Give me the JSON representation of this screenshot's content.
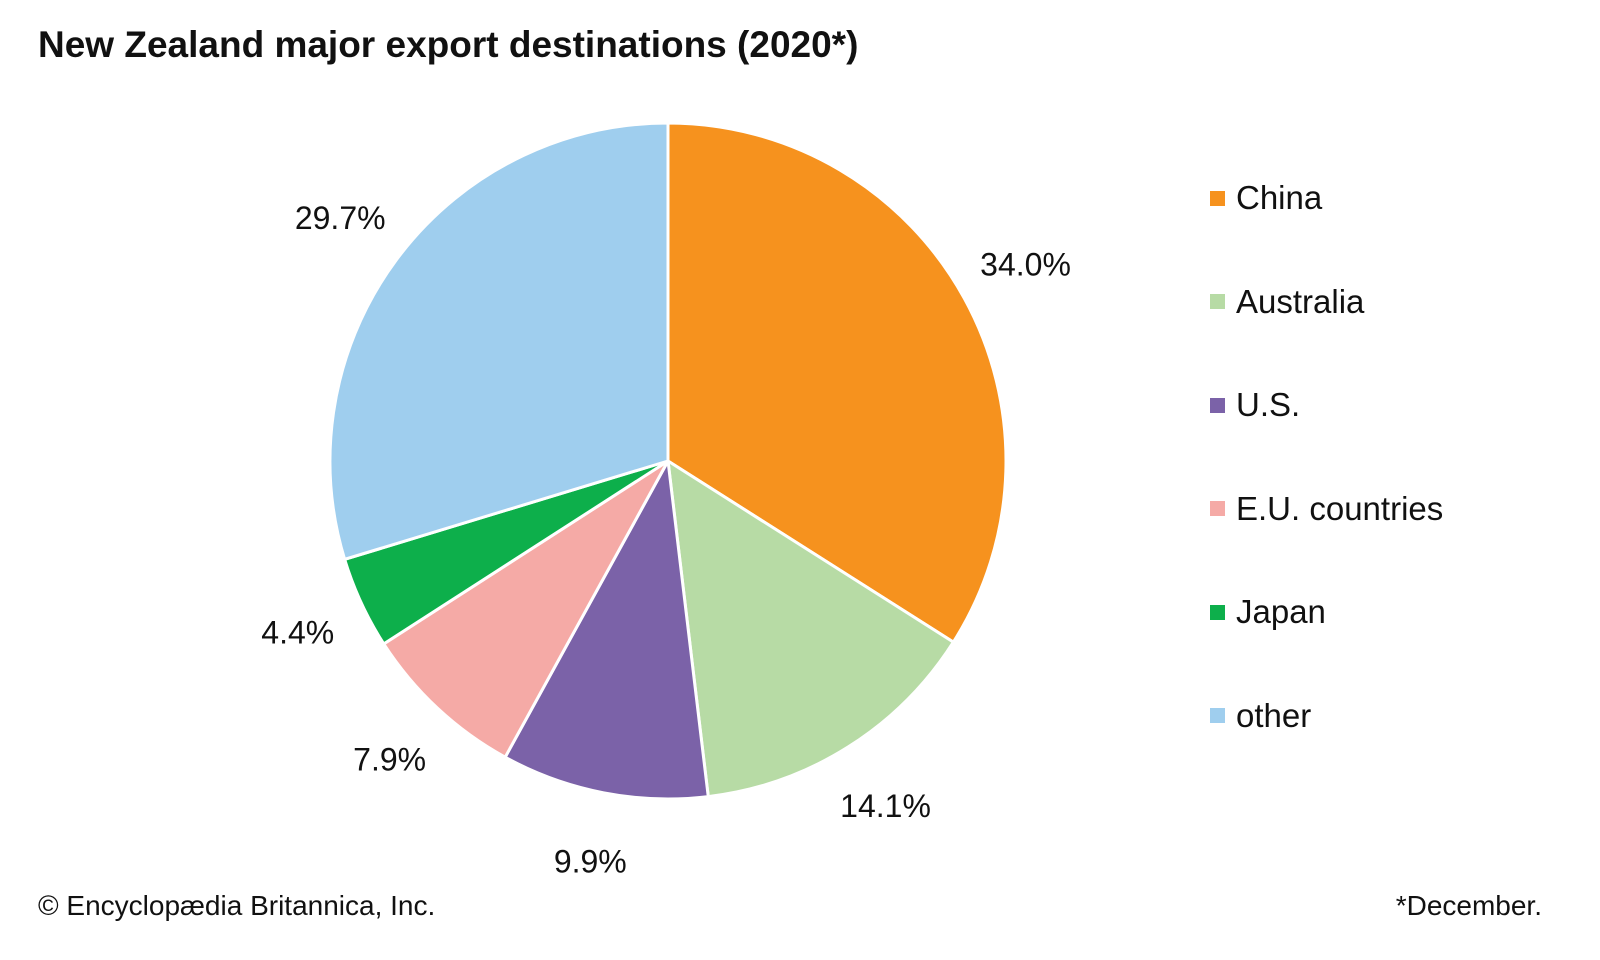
{
  "chart_data": {
    "type": "pie",
    "title": "New Zealand major export destinations (2020*)",
    "categories": [
      "China",
      "Australia",
      "U.S.",
      "E.U. countries",
      "Japan",
      "other"
    ],
    "values": [
      34.0,
      14.1,
      9.9,
      7.9,
      4.4,
      29.7
    ],
    "value_labels": [
      "34.0%",
      "14.1%",
      "9.9%",
      "7.9%",
      "4.4%",
      "29.7%"
    ],
    "colors": [
      "#F6921E",
      "#B7DBA5",
      "#7B62A8",
      "#F5AAA6",
      "#0DAF4B",
      "#9FCEEE"
    ],
    "legend_placement": "right",
    "credit": "© Encyclopædia Britannica, Inc.",
    "footnote": "*December."
  }
}
